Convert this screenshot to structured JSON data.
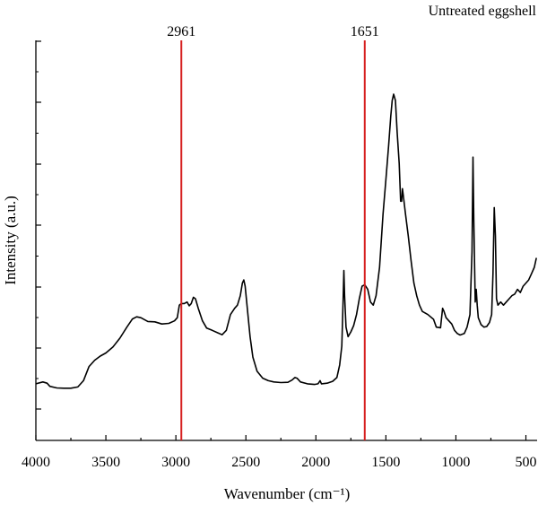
{
  "chart_data": {
    "type": "line",
    "title": "Untreated eggshell",
    "xlabel": "Wavenumber (cm⁻¹)",
    "ylabel": "Intensity (a.u.)",
    "xlim": [
      4000,
      420
    ],
    "x_reversed": true,
    "ylim": [
      0,
      1
    ],
    "x_ticks": [
      "4000",
      "3500",
      "3000",
      "2500",
      "2000",
      "1500",
      "1000",
      "500"
    ],
    "x_tick_values": [
      4000,
      3500,
      3000,
      2500,
      2000,
      1500,
      1000,
      500
    ],
    "y_tick_labels_shown": false,
    "grid": false,
    "markers": [
      {
        "label": "2961",
        "x": 2961,
        "color": "#d62020"
      },
      {
        "label": "1651",
        "x": 1651,
        "color": "#d62020"
      }
    ],
    "series": [
      {
        "color": "#000000",
        "points": [
          [
            4000,
            0.08
          ],
          [
            3950,
            0.086
          ],
          [
            3920,
            0.082
          ],
          [
            3900,
            0.072
          ],
          [
            3850,
            0.067
          ],
          [
            3800,
            0.066
          ],
          [
            3750,
            0.066
          ],
          [
            3700,
            0.07
          ],
          [
            3660,
            0.09
          ],
          [
            3620,
            0.135
          ],
          [
            3580,
            0.155
          ],
          [
            3540,
            0.168
          ],
          [
            3500,
            0.178
          ],
          [
            3450,
            0.197
          ],
          [
            3400,
            0.225
          ],
          [
            3350,
            0.26
          ],
          [
            3310,
            0.286
          ],
          [
            3280,
            0.293
          ],
          [
            3250,
            0.29
          ],
          [
            3200,
            0.278
          ],
          [
            3150,
            0.277
          ],
          [
            3100,
            0.27
          ],
          [
            3050,
            0.272
          ],
          [
            3010,
            0.28
          ],
          [
            2990,
            0.29
          ],
          [
            2975,
            0.33
          ],
          [
            2961,
            0.335
          ],
          [
            2940,
            0.335
          ],
          [
            2920,
            0.34
          ],
          [
            2905,
            0.328
          ],
          [
            2890,
            0.335
          ],
          [
            2875,
            0.355
          ],
          [
            2860,
            0.35
          ],
          [
            2840,
            0.32
          ],
          [
            2810,
            0.28
          ],
          [
            2780,
            0.257
          ],
          [
            2740,
            0.25
          ],
          [
            2700,
            0.242
          ],
          [
            2670,
            0.236
          ],
          [
            2640,
            0.25
          ],
          [
            2610,
            0.3
          ],
          [
            2580,
            0.32
          ],
          [
            2560,
            0.33
          ],
          [
            2540,
            0.36
          ],
          [
            2525,
            0.4
          ],
          [
            2515,
            0.41
          ],
          [
            2505,
            0.39
          ],
          [
            2490,
            0.32
          ],
          [
            2470,
            0.23
          ],
          [
            2450,
            0.165
          ],
          [
            2420,
            0.12
          ],
          [
            2380,
            0.098
          ],
          [
            2340,
            0.09
          ],
          [
            2300,
            0.086
          ],
          [
            2250,
            0.084
          ],
          [
            2200,
            0.085
          ],
          [
            2170,
            0.092
          ],
          [
            2150,
            0.1
          ],
          [
            2135,
            0.098
          ],
          [
            2110,
            0.086
          ],
          [
            2060,
            0.08
          ],
          [
            2010,
            0.078
          ],
          [
            1985,
            0.08
          ],
          [
            1970,
            0.09
          ],
          [
            1960,
            0.08
          ],
          [
            1920,
            0.082
          ],
          [
            1880,
            0.088
          ],
          [
            1850,
            0.1
          ],
          [
            1830,
            0.14
          ],
          [
            1815,
            0.2
          ],
          [
            1805,
            0.35
          ],
          [
            1800,
            0.44
          ],
          [
            1795,
            0.36
          ],
          [
            1785,
            0.26
          ],
          [
            1770,
            0.23
          ],
          [
            1750,
            0.245
          ],
          [
            1730,
            0.265
          ],
          [
            1710,
            0.3
          ],
          [
            1690,
            0.35
          ],
          [
            1670,
            0.39
          ],
          [
            1651,
            0.395
          ],
          [
            1630,
            0.38
          ],
          [
            1610,
            0.34
          ],
          [
            1590,
            0.33
          ],
          [
            1570,
            0.36
          ],
          [
            1545,
            0.45
          ],
          [
            1520,
            0.62
          ],
          [
            1500,
            0.73
          ],
          [
            1480,
            0.84
          ],
          [
            1465,
            0.93
          ],
          [
            1455,
            0.98
          ],
          [
            1445,
            1.0
          ],
          [
            1432,
            0.98
          ],
          [
            1420,
            0.88
          ],
          [
            1405,
            0.78
          ],
          [
            1395,
            0.66
          ],
          [
            1388,
            0.66
          ],
          [
            1382,
            0.7
          ],
          [
            1376,
            0.68
          ],
          [
            1360,
            0.62
          ],
          [
            1340,
            0.55
          ],
          [
            1320,
            0.47
          ],
          [
            1300,
            0.4
          ],
          [
            1280,
            0.36
          ],
          [
            1260,
            0.33
          ],
          [
            1240,
            0.31
          ],
          [
            1200,
            0.3
          ],
          [
            1160,
            0.285
          ],
          [
            1140,
            0.26
          ],
          [
            1110,
            0.258
          ],
          [
            1095,
            0.32
          ],
          [
            1085,
            0.31
          ],
          [
            1070,
            0.29
          ],
          [
            1050,
            0.28
          ],
          [
            1030,
            0.27
          ],
          [
            1010,
            0.25
          ],
          [
            990,
            0.24
          ],
          [
            970,
            0.235
          ],
          [
            940,
            0.24
          ],
          [
            920,
            0.26
          ],
          [
            900,
            0.3
          ],
          [
            885,
            0.5
          ],
          [
            878,
            0.8
          ],
          [
            872,
            0.6
          ],
          [
            862,
            0.34
          ],
          [
            855,
            0.38
          ],
          [
            848,
            0.33
          ],
          [
            840,
            0.29
          ],
          [
            820,
            0.268
          ],
          [
            800,
            0.26
          ],
          [
            780,
            0.262
          ],
          [
            760,
            0.275
          ],
          [
            745,
            0.3
          ],
          [
            735,
            0.43
          ],
          [
            726,
            0.64
          ],
          [
            718,
            0.55
          ],
          [
            710,
            0.35
          ],
          [
            700,
            0.33
          ],
          [
            680,
            0.34
          ],
          [
            660,
            0.33
          ],
          [
            640,
            0.34
          ],
          [
            620,
            0.35
          ],
          [
            600,
            0.36
          ],
          [
            580,
            0.365
          ],
          [
            560,
            0.38
          ],
          [
            540,
            0.37
          ],
          [
            520,
            0.39
          ],
          [
            500,
            0.4
          ],
          [
            480,
            0.41
          ],
          [
            460,
            0.43
          ],
          [
            440,
            0.45
          ],
          [
            425,
            0.48
          ]
        ]
      }
    ]
  }
}
